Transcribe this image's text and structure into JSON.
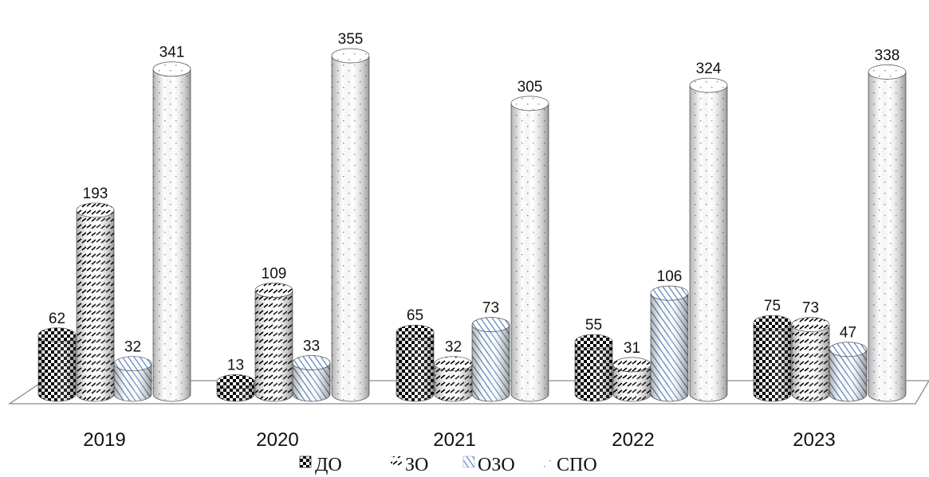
{
  "chart_data": {
    "type": "bar",
    "style": "3d-cylinder",
    "categories": [
      "2019",
      "2020",
      "2021",
      "2022",
      "2023"
    ],
    "series": [
      {
        "name": "ДО",
        "values": [
          62,
          13,
          65,
          55,
          75
        ],
        "pattern": "checker"
      },
      {
        "name": "ЗО",
        "values": [
          193,
          109,
          32,
          31,
          73
        ],
        "pattern": "dashes"
      },
      {
        "name": "ОЗО",
        "values": [
          32,
          33,
          73,
          106,
          47
        ],
        "pattern": "diagonal-blue"
      },
      {
        "name": "СПО",
        "values": [
          341,
          355,
          305,
          324,
          338
        ],
        "pattern": "dots"
      }
    ],
    "ylim": [
      0,
      360
    ],
    "grid": false,
    "data_labels": true,
    "legend_position": "bottom",
    "colors": {
      "blue_hatch": "#4a78b8",
      "dark": "#000000",
      "floor_stroke": "#8a8a8a"
    }
  }
}
